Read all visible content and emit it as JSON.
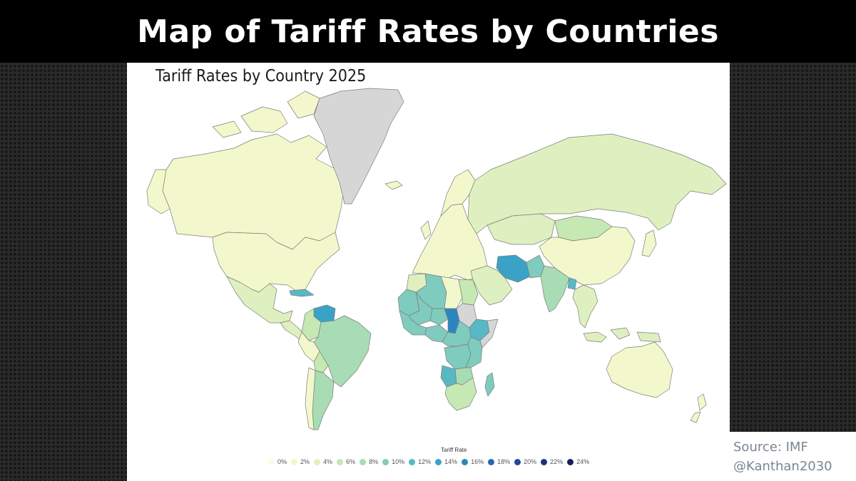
{
  "header": {
    "title": "Map of Tariff Rates by Countries"
  },
  "map": {
    "title": "Tariff Rates by Country 2025",
    "legend_title": "Tariff Rate",
    "legend": [
      {
        "label": "0%",
        "color": "#fcfce4"
      },
      {
        "label": "2%",
        "color": "#f3f8cc"
      },
      {
        "label": "4%",
        "color": "#dff0c0"
      },
      {
        "label": "6%",
        "color": "#c6e8b3"
      },
      {
        "label": "8%",
        "color": "#a8dcb4"
      },
      {
        "label": "10%",
        "color": "#7fcbbd"
      },
      {
        "label": "12%",
        "color": "#56b9c4"
      },
      {
        "label": "14%",
        "color": "#3ba2c7"
      },
      {
        "label": "16%",
        "color": "#2b86c0"
      },
      {
        "label": "18%",
        "color": "#2668b0"
      },
      {
        "label": "20%",
        "color": "#24479a"
      },
      {
        "label": "22%",
        "color": "#1f2f86"
      },
      {
        "label": "24%",
        "color": "#14205e"
      }
    ],
    "no_data_color": "#d6d6d6",
    "regions": [
      {
        "name": "Canada",
        "tariff": 2
      },
      {
        "name": "USA",
        "tariff": 2
      },
      {
        "name": "Mexico",
        "tariff": 4
      },
      {
        "name": "Cuba",
        "tariff": 12
      },
      {
        "name": "Greenland",
        "tariff": null
      },
      {
        "name": "Iceland",
        "tariff": 2
      },
      {
        "name": "Venezuela",
        "tariff": 14
      },
      {
        "name": "Colombia",
        "tariff": 6
      },
      {
        "name": "Brazil",
        "tariff": 8
      },
      {
        "name": "Peru",
        "tariff": 2
      },
      {
        "name": "Bolivia",
        "tariff": 6
      },
      {
        "name": "Argentina",
        "tariff": 8
      },
      {
        "name": "Chile",
        "tariff": 2
      },
      {
        "name": "Europe",
        "tariff": 2
      },
      {
        "name": "Russia",
        "tariff": 4
      },
      {
        "name": "Kazakhstan",
        "tariff": 4
      },
      {
        "name": "Mongolia",
        "tariff": 6
      },
      {
        "name": "China",
        "tariff": 2
      },
      {
        "name": "India",
        "tariff": 8
      },
      {
        "name": "Iran",
        "tariff": 14
      },
      {
        "name": "Pakistan",
        "tariff": 10
      },
      {
        "name": "Bangladesh",
        "tariff": 12
      },
      {
        "name": "Saudi Arabia",
        "tariff": 4
      },
      {
        "name": "Southeast Asia",
        "tariff": 4
      },
      {
        "name": "Japan",
        "tariff": 2
      },
      {
        "name": "Indonesia",
        "tariff": 4
      },
      {
        "name": "Australia",
        "tariff": 2
      },
      {
        "name": "New Zealand",
        "tariff": 2
      },
      {
        "name": "Morocco",
        "tariff": 4
      },
      {
        "name": "Algeria",
        "tariff": 10
      },
      {
        "name": "Libya",
        "tariff": 2
      },
      {
        "name": "Egypt",
        "tariff": 6
      },
      {
        "name": "Mauritania",
        "tariff": 10
      },
      {
        "name": "Mali",
        "tariff": 10
      },
      {
        "name": "Niger",
        "tariff": 10
      },
      {
        "name": "Chad",
        "tariff": 16
      },
      {
        "name": "Sudan",
        "tariff": null
      },
      {
        "name": "Ethiopia",
        "tariff": 12
      },
      {
        "name": "Somalia",
        "tariff": null
      },
      {
        "name": "Nigeria",
        "tariff": 10
      },
      {
        "name": "DR Congo",
        "tariff": 10
      },
      {
        "name": "Angola",
        "tariff": 12
      },
      {
        "name": "Tanzania",
        "tariff": 10
      },
      {
        "name": "Zambia",
        "tariff": 8
      },
      {
        "name": "Southern Africa",
        "tariff": 6
      },
      {
        "name": "Madagascar",
        "tariff": 10
      }
    ]
  },
  "source": {
    "line1": "Source: IMF",
    "line2": "@Kanthan2030"
  }
}
